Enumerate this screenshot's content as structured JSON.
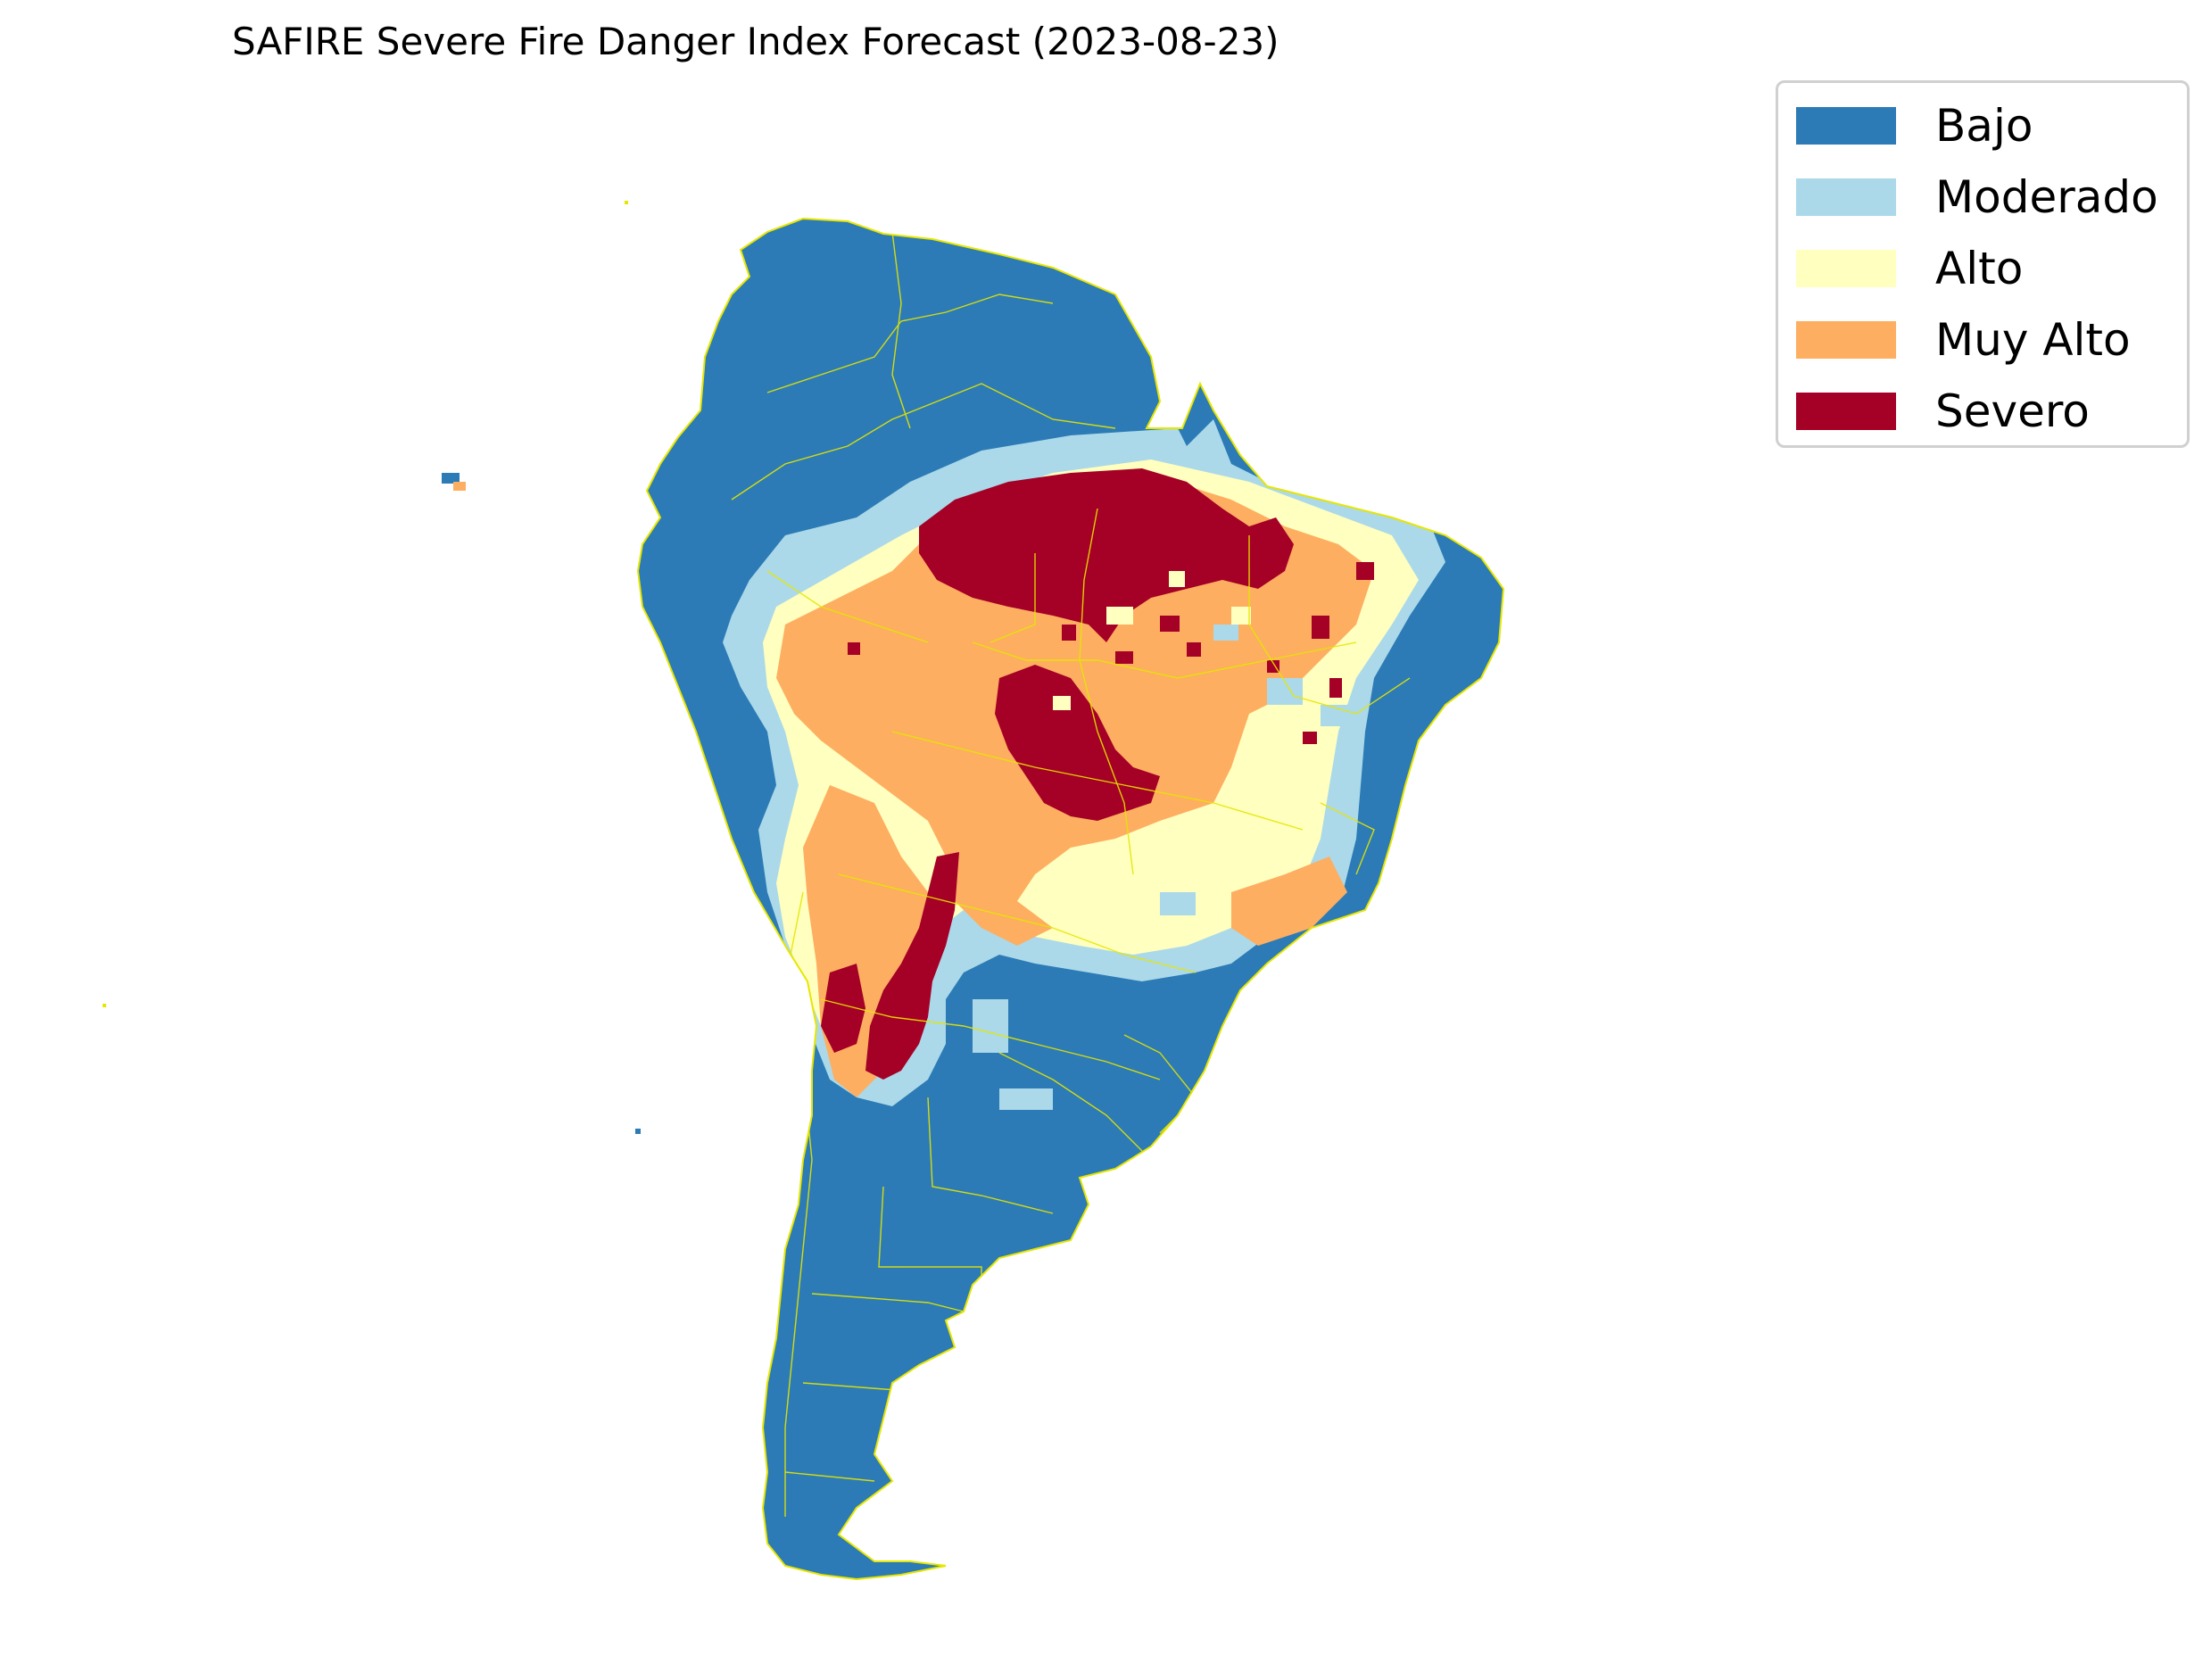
{
  "map": {
    "title": "SAFIRE Severe Fire Danger Index Forecast (2023-08-23)",
    "border_color": "#e6e600",
    "legend": [
      {
        "label": "Bajo",
        "color": "#2c7bb6"
      },
      {
        "label": "Moderado",
        "color": "#abd9e9"
      },
      {
        "label": "Alto",
        "color": "#ffffbf"
      },
      {
        "label": "Muy Alto",
        "color": "#fdae61"
      },
      {
        "label": "Severo",
        "color": "#a50026"
      }
    ]
  }
}
